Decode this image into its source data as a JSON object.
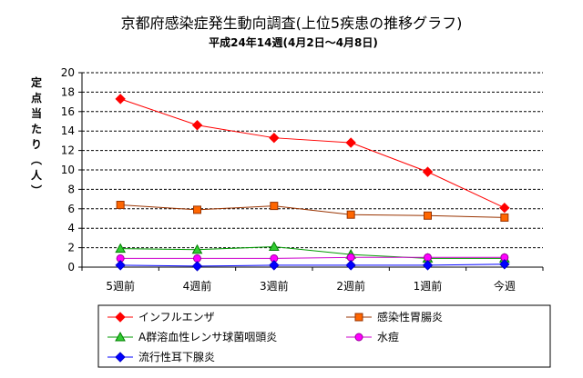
{
  "chart_data": {
    "type": "line",
    "title": "京都府感染症発生動向調査(上位5疾患の推移グラフ)",
    "subtitle": "平成24年14週(4月2日～4月8日)",
    "ylabel": "定点当たり(人)",
    "xlabel": "",
    "categories": [
      "5週前",
      "4週前",
      "3週前",
      "2週前",
      "1週前",
      "今週"
    ],
    "ylim": [
      0,
      20
    ],
    "yticks": [
      0,
      2,
      4,
      6,
      8,
      10,
      12,
      14,
      16,
      18,
      20
    ],
    "grid": "horizontal-dashed",
    "legend_position": "bottom",
    "series": [
      {
        "name": "インフルエンザ",
        "color": "#ff0000",
        "marker": "diamond",
        "marker_fill": "#ff0000",
        "marker_stroke": "#ff0000",
        "values": [
          17.3,
          14.6,
          13.3,
          12.8,
          9.8,
          6.1
        ]
      },
      {
        "name": "感染性胃腸炎",
        "color": "#993300",
        "marker": "square",
        "marker_fill": "#ff6600",
        "marker_stroke": "#993300",
        "values": [
          6.4,
          5.9,
          6.3,
          5.4,
          5.3,
          5.1
        ]
      },
      {
        "name": "A群溶血性レンサ球菌咽頭炎",
        "color": "#009900",
        "marker": "triangle",
        "marker_fill": "#33cc33",
        "marker_stroke": "#008000",
        "values": [
          1.9,
          1.8,
          2.1,
          1.3,
          0.9,
          0.9
        ]
      },
      {
        "name": "水痘",
        "color": "#cc00cc",
        "marker": "circle",
        "marker_fill": "#ff00ff",
        "marker_stroke": "#990099",
        "values": [
          0.9,
          0.9,
          0.9,
          1.0,
          1.0,
          1.0
        ]
      },
      {
        "name": "流行性耳下腺炎",
        "color": "#0000ff",
        "marker": "diamond",
        "marker_fill": "#0000ff",
        "marker_stroke": "#0000cc",
        "values": [
          0.2,
          0.1,
          0.2,
          0.2,
          0.2,
          0.3
        ]
      }
    ]
  }
}
